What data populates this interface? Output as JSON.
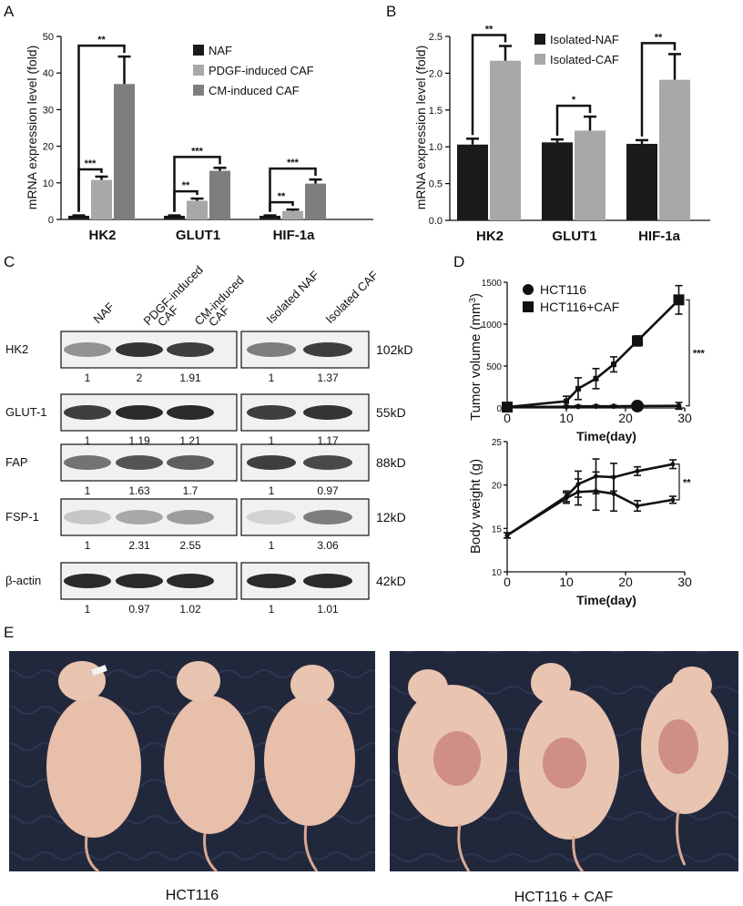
{
  "panel_letters": {
    "a": "A",
    "b": "B",
    "c": "C",
    "d": "D",
    "e": "E"
  },
  "chart_data": [
    {
      "id": "A",
      "type": "bar",
      "ylabel": "mRNA expression level (fold)",
      "ylim": [
        0,
        50
      ],
      "yticks": [
        0,
        10,
        20,
        30,
        40,
        50
      ],
      "categories": [
        "HK2",
        "GLUT1",
        "HIF-1a"
      ],
      "series": [
        {
          "name": "NAF",
          "color": "#1a1a1a",
          "values": [
            1,
            1,
            1
          ],
          "errors": [
            0.1,
            0.1,
            0.1
          ]
        },
        {
          "name": "PDGF-induced CAF",
          "color": "#a8a8a8",
          "values": [
            10.8,
            5.1,
            2.3
          ],
          "errors": [
            0.9,
            0.6,
            0.4
          ]
        },
        {
          "name": "CM-induced CAF",
          "color": "#7e7e7e",
          "values": [
            37,
            13.3,
            9.8
          ],
          "errors": [
            7.5,
            0.8,
            1.1
          ]
        }
      ],
      "significance": [
        {
          "label": "**",
          "category": 0,
          "from": 0,
          "to": 2
        },
        {
          "label": "***",
          "category": 0,
          "from": 0,
          "to": 1
        },
        {
          "label": "***",
          "category": 1,
          "from": 0,
          "to": 2
        },
        {
          "label": "**",
          "category": 1,
          "from": 0,
          "to": 1
        },
        {
          "label": "***",
          "category": 2,
          "from": 0,
          "to": 2
        },
        {
          "label": "**",
          "category": 2,
          "from": 0,
          "to": 1
        }
      ]
    },
    {
      "id": "B",
      "type": "bar",
      "ylabel": "mRNA expression level (fold)",
      "ylim": [
        0,
        2.5
      ],
      "yticks": [
        "0.0",
        "0.5",
        "1.0",
        "1.5",
        "2.0",
        "2.5"
      ],
      "categories": [
        "HK2",
        "GLUT1",
        "HIF-1a"
      ],
      "series": [
        {
          "name": "Isolated-NAF",
          "color": "#1a1a1a",
          "values": [
            1.03,
            1.06,
            1.04
          ],
          "errors": [
            0.08,
            0.04,
            0.05
          ]
        },
        {
          "name": "Isolated-CAF",
          "color": "#a8a8a8",
          "values": [
            2.17,
            1.22,
            1.91
          ],
          "errors": [
            0.2,
            0.19,
            0.35
          ]
        }
      ],
      "significance": [
        {
          "label": "**",
          "category": 0
        },
        {
          "label": "*",
          "category": 1
        },
        {
          "label": "**",
          "category": 2
        }
      ]
    },
    {
      "id": "D-top",
      "type": "line",
      "ylabel": "Tumor volume (mm",
      "ylabel_sup": "3",
      "ylabel_end": ")",
      "xlabel": "Time(day)",
      "xlim": [
        0,
        30
      ],
      "ylim": [
        0,
        1500
      ],
      "xticks": [
        0,
        10,
        20,
        30
      ],
      "yticks": [
        0,
        500,
        1000,
        1500
      ],
      "series": [
        {
          "name": "HCT116",
          "marker": "circle",
          "x": [
            0,
            10,
            12,
            15,
            18,
            22,
            29
          ],
          "y": [
            10,
            15,
            18,
            20,
            20,
            22,
            25
          ],
          "errors": [
            5,
            10,
            10,
            10,
            10,
            15,
            40
          ]
        },
        {
          "name": "HCT116+CAF",
          "marker": "square",
          "x": [
            0,
            10,
            12,
            15,
            18,
            22,
            29
          ],
          "y": [
            10,
            80,
            230,
            350,
            520,
            800,
            1290
          ],
          "errors": [
            5,
            60,
            130,
            120,
            90,
            60,
            170
          ]
        }
      ],
      "significance": "***"
    },
    {
      "id": "D-bottom",
      "type": "line",
      "ylabel": "Body weight (g)",
      "xlabel": "Time(day)",
      "xlim": [
        0,
        30
      ],
      "ylim": [
        10,
        25
      ],
      "xticks": [
        0,
        10,
        20,
        30
      ],
      "yticks": [
        10,
        15,
        20,
        25
      ],
      "series": [
        {
          "name": "HCT116",
          "x": [
            0,
            10,
            12,
            15,
            18,
            22,
            28
          ],
          "y": [
            14.2,
            18.7,
            20.1,
            21.0,
            20.9,
            21.6,
            22.4
          ],
          "errors": [
            0.3,
            0.6,
            1.5,
            2.0,
            1.6,
            0.5,
            0.5
          ]
        },
        {
          "name": "HCT116+CAF",
          "x": [
            0,
            10,
            12,
            15,
            18,
            22,
            28
          ],
          "y": [
            14.2,
            18.5,
            19.2,
            19.3,
            19.0,
            17.6,
            18.3
          ],
          "errors": [
            0.3,
            0.6,
            1.5,
            2.2,
            2.0,
            0.6,
            0.4
          ]
        }
      ],
      "significance": "**"
    }
  ],
  "western_blot": {
    "col_headers": [
      "NAF",
      "PDGF-induced CAF",
      "CM-induced CAF",
      "Isolated NAF",
      "Isolated CAF"
    ],
    "rows": [
      {
        "protein": "HK2",
        "size": "102kD",
        "values": [
          "1",
          "2",
          "1.91",
          "1",
          "1.37"
        ]
      },
      {
        "protein": "GLUT-1",
        "size": "55kD",
        "values": [
          "1",
          "1.19",
          "1.21",
          "1",
          "1.17"
        ]
      },
      {
        "protein": "FAP",
        "size": "88kD",
        "values": [
          "1",
          "1.63",
          "1.7",
          "1",
          "0.97"
        ]
      },
      {
        "protein": "FSP-1",
        "size": "12kD",
        "values": [
          "1",
          "2.31",
          "2.55",
          "1",
          "3.06"
        ]
      },
      {
        "protein": "β-actin",
        "size": "42kD",
        "values": [
          "1",
          "0.97",
          "1.02",
          "1",
          "1.01"
        ]
      }
    ]
  },
  "photos": {
    "left_caption": "HCT116",
    "right_caption": "HCT116 + CAF"
  }
}
